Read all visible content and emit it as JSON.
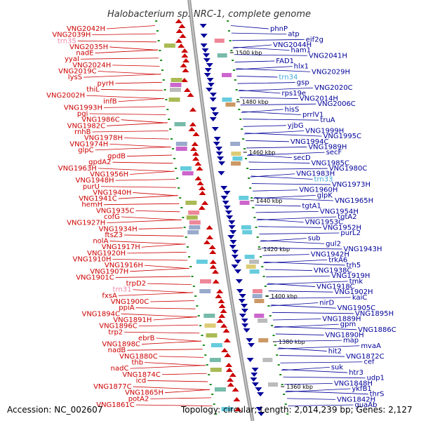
{
  "title": "Halobacterium sp. NRC-1, complete genome",
  "footer": {
    "accession": "Accession: NC_002607",
    "summary": "Topology: circular; Length: 2,014,239 bp; Genes: 2,127"
  },
  "colors": {
    "forward_strand": "#cc0000",
    "reverse_strand": "#000099",
    "rna_label_left": "#ee88aa",
    "rna_label_right": "#44aadd",
    "backbone": "#999999",
    "tick": "#1a8c1a"
  },
  "kbp_marks": [
    {
      "label": "1500 kbp"
    },
    {
      "label": "1480 kbp"
    },
    {
      "label": "1460 kbp"
    },
    {
      "label": "1440 kbp"
    },
    {
      "label": "1420 kbp"
    },
    {
      "label": "1400 kbp"
    },
    {
      "label": "1380 kbp"
    },
    {
      "label": "1360 kbp"
    }
  ],
  "left_labels": [
    {
      "text": "VNG2042H",
      "kind": "gene"
    },
    {
      "text": "VNG2039H",
      "kind": "gene"
    },
    {
      "text": "trn35",
      "kind": "rna"
    },
    {
      "text": "VNG2035H",
      "kind": "gene"
    },
    {
      "text": "nadE",
      "kind": "gene"
    },
    {
      "text": "yyaI",
      "kind": "gene"
    },
    {
      "text": "VNG2024H",
      "kind": "gene"
    },
    {
      "text": "VNG2019C",
      "kind": "gene"
    },
    {
      "text": "lysS",
      "kind": "gene"
    },
    {
      "text": "pyrH",
      "kind": "gene"
    },
    {
      "text": "thiL",
      "kind": "gene"
    },
    {
      "text": "VNG2002H",
      "kind": "gene"
    },
    {
      "text": "infB",
      "kind": "gene"
    },
    {
      "text": "VNG1993H",
      "kind": "gene"
    },
    {
      "text": "pgi",
      "kind": "gene"
    },
    {
      "text": "VNG1986C",
      "kind": "gene"
    },
    {
      "text": "VNG1982C",
      "kind": "gene"
    },
    {
      "text": "rnhB",
      "kind": "gene"
    },
    {
      "text": "VNG1978H",
      "kind": "gene"
    },
    {
      "text": "VNG1974H",
      "kind": "gene"
    },
    {
      "text": "glpC",
      "kind": "gene"
    },
    {
      "text": "gpdB",
      "kind": "gene"
    },
    {
      "text": "gpdA2",
      "kind": "gene"
    },
    {
      "text": "VNG1963H",
      "kind": "gene"
    },
    {
      "text": "VNG1956H",
      "kind": "gene"
    },
    {
      "text": "VNG1948H",
      "kind": "gene"
    },
    {
      "text": "purU",
      "kind": "gene"
    },
    {
      "text": "VNG1940H",
      "kind": "gene"
    },
    {
      "text": "VNG1941C",
      "kind": "gene"
    },
    {
      "text": "hemH",
      "kind": "gene"
    },
    {
      "text": "VNG1935C",
      "kind": "gene"
    },
    {
      "text": "cofG",
      "kind": "gene"
    },
    {
      "text": "VNG1927H",
      "kind": "gene"
    },
    {
      "text": "VNG1934H",
      "kind": "gene"
    },
    {
      "text": "ftsZ3",
      "kind": "gene"
    },
    {
      "text": "nolA",
      "kind": "gene"
    },
    {
      "text": "VNG1917H",
      "kind": "gene"
    },
    {
      "text": "VNG1920H",
      "kind": "gene"
    },
    {
      "text": "VNG1910H",
      "kind": "gene"
    },
    {
      "text": "VNG1916H",
      "kind": "gene"
    },
    {
      "text": "VNG1907H",
      "kind": "gene"
    },
    {
      "text": "VNG1901C",
      "kind": "gene"
    },
    {
      "text": "trpD2",
      "kind": "gene"
    },
    {
      "text": "trn31",
      "kind": "rna"
    },
    {
      "text": "fxsA",
      "kind": "gene"
    },
    {
      "text": "VNG1900C",
      "kind": "gene"
    },
    {
      "text": "ppiA",
      "kind": "gene"
    },
    {
      "text": "VNG1894C",
      "kind": "gene"
    },
    {
      "text": "VNG1891H",
      "kind": "gene"
    },
    {
      "text": "VNG1896C",
      "kind": "gene"
    },
    {
      "text": "trp2",
      "kind": "gene"
    },
    {
      "text": "ebrB",
      "kind": "gene"
    },
    {
      "text": "VNG1898C",
      "kind": "gene"
    },
    {
      "text": "nadB",
      "kind": "gene"
    },
    {
      "text": "VNG1880C",
      "kind": "gene"
    },
    {
      "text": "thb",
      "kind": "gene"
    },
    {
      "text": "nadC",
      "kind": "gene"
    },
    {
      "text": "VNG1874C",
      "kind": "gene"
    },
    {
      "text": "icd",
      "kind": "gene"
    },
    {
      "text": "VNG1877C",
      "kind": "gene"
    },
    {
      "text": "VNG1865H",
      "kind": "gene"
    },
    {
      "text": "potA2",
      "kind": "gene"
    },
    {
      "text": "VNG1861C",
      "kind": "gene"
    }
  ],
  "right_labels": [
    {
      "text": "phnP",
      "kind": "gene"
    },
    {
      "text": "atp",
      "kind": "gene"
    },
    {
      "text": "eif2g",
      "kind": "gene"
    },
    {
      "text": "VNG2044H",
      "kind": "gene"
    },
    {
      "text": "ham1",
      "kind": "gene"
    },
    {
      "text": "VNG2041H",
      "kind": "gene"
    },
    {
      "text": "FAD1",
      "kind": "gene"
    },
    {
      "text": "hlx1",
      "kind": "gene"
    },
    {
      "text": "VNG2029H",
      "kind": "gene"
    },
    {
      "text": "trn34",
      "kind": "rna"
    },
    {
      "text": "gsp",
      "kind": "gene"
    },
    {
      "text": "VNG2020C",
      "kind": "gene"
    },
    {
      "text": "rps19e",
      "kind": "gene"
    },
    {
      "text": "VNG2014H",
      "kind": "gene"
    },
    {
      "text": "VNG2006C",
      "kind": "gene"
    },
    {
      "text": "hisS",
      "kind": "gene"
    },
    {
      "text": "prrlV1",
      "kind": "gene"
    },
    {
      "text": "truA",
      "kind": "gene"
    },
    {
      "text": "yjbG",
      "kind": "gene"
    },
    {
      "text": "VNG1999H",
      "kind": "gene"
    },
    {
      "text": "VNG1995C",
      "kind": "gene"
    },
    {
      "text": "VNG1994C",
      "kind": "gene"
    },
    {
      "text": "VNG1989H",
      "kind": "gene"
    },
    {
      "text": "secF",
      "kind": "gene"
    },
    {
      "text": "secD",
      "kind": "gene"
    },
    {
      "text": "VNG1985C",
      "kind": "gene"
    },
    {
      "text": "VNG1980C",
      "kind": "gene"
    },
    {
      "text": "VNG1983H",
      "kind": "gene"
    },
    {
      "text": "trn33",
      "kind": "rna"
    },
    {
      "text": "VNG1973H",
      "kind": "gene"
    },
    {
      "text": "VNG1960H",
      "kind": "gene"
    },
    {
      "text": "glpK",
      "kind": "gene"
    },
    {
      "text": "VNG1965H",
      "kind": "gene"
    },
    {
      "text": "tgtA1",
      "kind": "gene"
    },
    {
      "text": "VNG1954H",
      "kind": "gene"
    },
    {
      "text": "tgtA2",
      "kind": "gene"
    },
    {
      "text": "VNG1953C",
      "kind": "gene"
    },
    {
      "text": "VNG1952H",
      "kind": "gene"
    },
    {
      "text": "purL2",
      "kind": "gene"
    },
    {
      "text": "sub",
      "kind": "gene"
    },
    {
      "text": "gul2",
      "kind": "gene"
    },
    {
      "text": "VNG1943H",
      "kind": "gene"
    },
    {
      "text": "VNG1942H",
      "kind": "gene"
    },
    {
      "text": "trkA6",
      "kind": "gene"
    },
    {
      "text": "trh5",
      "kind": "gene"
    },
    {
      "text": "VNG1938C",
      "kind": "gene"
    },
    {
      "text": "VNG1919H",
      "kind": "gene"
    },
    {
      "text": "tmk",
      "kind": "gene"
    },
    {
      "text": "VNG1918C",
      "kind": "gene"
    },
    {
      "text": "VNG1902H",
      "kind": "gene"
    },
    {
      "text": "kaiC",
      "kind": "gene"
    },
    {
      "text": "nirD",
      "kind": "gene"
    },
    {
      "text": "VNG1905C",
      "kind": "gene"
    },
    {
      "text": "VNG1895H",
      "kind": "gene"
    },
    {
      "text": "VNG1889H",
      "kind": "gene"
    },
    {
      "text": "gpm",
      "kind": "gene"
    },
    {
      "text": "VNG1886C",
      "kind": "gene"
    },
    {
      "text": "VNG1890H",
      "kind": "gene"
    },
    {
      "text": "map",
      "kind": "gene"
    },
    {
      "text": "mvaA",
      "kind": "gene"
    },
    {
      "text": "hit2",
      "kind": "gene"
    },
    {
      "text": "VNG1872C",
      "kind": "gene"
    },
    {
      "text": "cef",
      "kind": "gene"
    },
    {
      "text": "suk",
      "kind": "gene"
    },
    {
      "text": "htr3",
      "kind": "gene"
    },
    {
      "text": "udp1",
      "kind": "gene"
    },
    {
      "text": "VNG1848H",
      "kind": "gene"
    },
    {
      "text": "ykfB1",
      "kind": "gene"
    },
    {
      "text": "thrS",
      "kind": "gene"
    },
    {
      "text": "VNG1842H",
      "kind": "gene"
    },
    {
      "text": "guaAb",
      "kind": "gene"
    }
  ]
}
